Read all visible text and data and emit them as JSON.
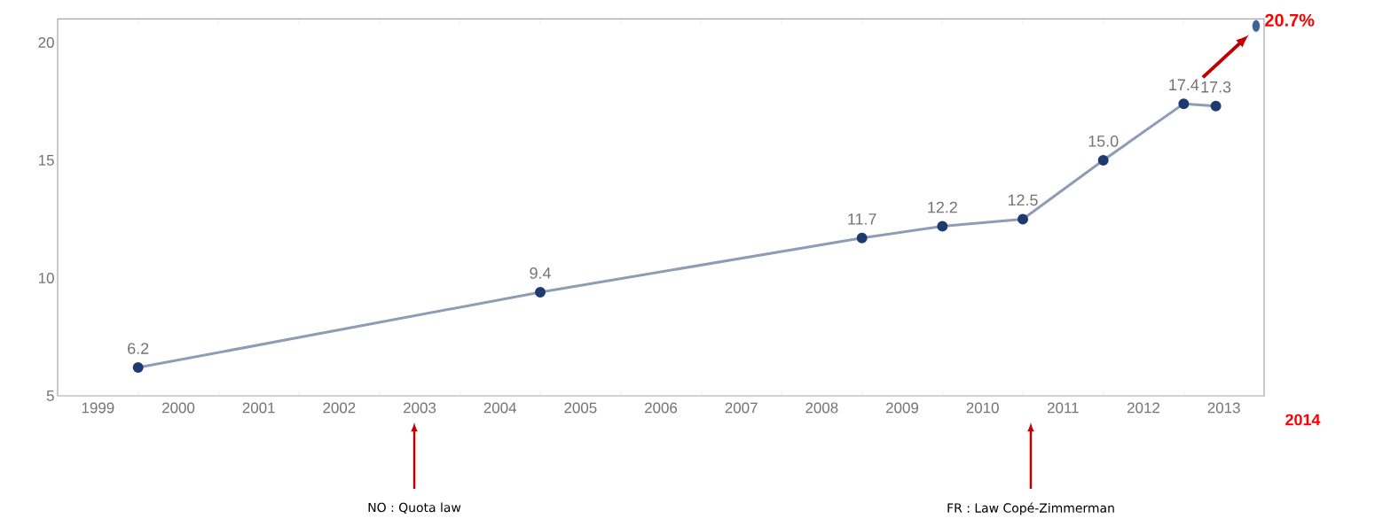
{
  "chart_data": {
    "type": "line",
    "xlim": [
      1998.5,
      2013.5
    ],
    "xticks": [
      1999,
      2000,
      2001,
      2002,
      2003,
      2004,
      2005,
      2006,
      2007,
      2008,
      2009,
      2010,
      2011,
      2012,
      2013
    ],
    "ylim": [
      5,
      21
    ],
    "yticks": [
      5,
      10,
      15,
      20
    ],
    "marker": "circle",
    "grid": false,
    "series": [
      {
        "color": "#1f3a6e",
        "x": [
          1999.5,
          2004.5,
          2008.5,
          2009.5,
          2010.5,
          2011.5,
          2012.5,
          2012.9
        ],
        "values": [
          6.2,
          9.4,
          11.7,
          12.2,
          12.5,
          15.0,
          17.4,
          17.3
        ],
        "value_labels": [
          "6.2",
          "9.4",
          "11.7",
          "12.2",
          "12.5",
          "15.0",
          "17.4",
          "17.3"
        ]
      },
      {
        "type": "scatter",
        "color": "#3f6396",
        "x": [
          2013.4
        ],
        "values": [
          20.7
        ]
      }
    ],
    "annotations": [
      {
        "text": "20.7%",
        "x": 2013.4,
        "y": 20.7
      },
      "2014",
      "NO : Quota law",
      "FR : Law Copé-Zimmerman"
    ]
  }
}
